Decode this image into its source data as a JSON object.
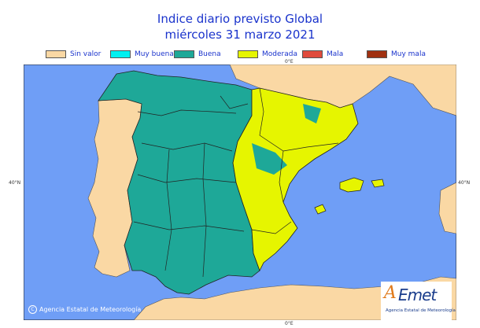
{
  "title": {
    "line1": "Indice diario previsto Global",
    "line2": "miércoles 31 marzo 2021"
  },
  "legend": [
    {
      "label": "Sin valor",
      "color": "#fad8a4"
    },
    {
      "label": "Muy buena",
      "color": "#00f0f0"
    },
    {
      "label": "Buena",
      "color": "#1ea898"
    },
    {
      "label": "Moderada",
      "color": "#e6f500"
    },
    {
      "label": "Mala",
      "color": "#e04b3c"
    },
    {
      "label": "Muy mala",
      "color": "#a03010"
    }
  ],
  "axis_labels": {
    "top_lon": "0°E",
    "bottom_lon": "0°E",
    "left_lat": "40°N",
    "right_lat": "40°N"
  },
  "colors": {
    "sea": "#6f9ef6",
    "land_no_value": "#fad8a4",
    "good": "#1ea898",
    "moderate": "#e6f500",
    "border": "#222222"
  },
  "copyright": "Agencia Estatal de Meteorología",
  "logo": {
    "brand_a": "A",
    "brand_rest": "Emet",
    "subtitle": "Agencia Estatal de Meteorología"
  }
}
